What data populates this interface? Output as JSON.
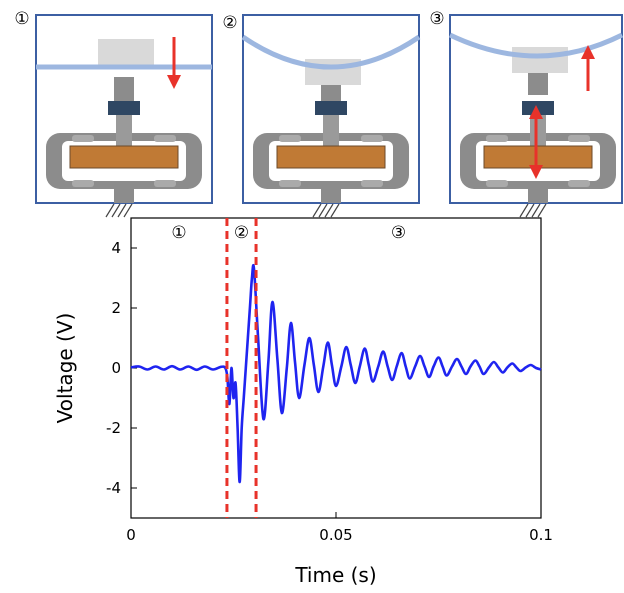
{
  "panels": [
    "①",
    "②",
    "③"
  ],
  "chart_data": {
    "type": "line",
    "xlabel": "Time (s)",
    "ylabel": "Voltage (V)",
    "xlim": [
      0,
      0.1
    ],
    "ylim": [
      -5,
      5
    ],
    "xticks": [
      0,
      0.05,
      0.1
    ],
    "yticks": [
      -4,
      -2,
      0,
      2,
      4
    ],
    "vlines": [
      0.0234,
      0.0305
    ],
    "vline_color": "#e8322a",
    "annotations": [
      "①",
      "②",
      "③"
    ],
    "series": [
      {
        "color": "#1f24f0",
        "x": [
          0,
          0.002,
          0.004,
          0.006,
          0.008,
          0.01,
          0.012,
          0.014,
          0.016,
          0.018,
          0.02,
          0.022,
          0.023,
          0.0235,
          0.024,
          0.0245,
          0.025,
          0.0255,
          0.026,
          0.0265,
          0.027,
          0.0275,
          0.028,
          0.029,
          0.0295,
          0.03,
          0.031,
          0.0323,
          0.0335,
          0.0345,
          0.0357,
          0.0368,
          0.038,
          0.039,
          0.04,
          0.041,
          0.0423,
          0.0435,
          0.0446,
          0.0457,
          0.0469,
          0.048,
          0.049,
          0.05,
          0.0513,
          0.0525,
          0.0536,
          0.0547,
          0.0558,
          0.057,
          0.058,
          0.059,
          0.0603,
          0.0615,
          0.0626,
          0.0637,
          0.0648,
          0.066,
          0.067,
          0.068,
          0.0693,
          0.0705,
          0.0716,
          0.0727,
          0.0738,
          0.075,
          0.076,
          0.077,
          0.0783,
          0.0795,
          0.0806,
          0.0817,
          0.0828,
          0.084,
          0.085,
          0.086,
          0.0873,
          0.0885,
          0.0896,
          0.0907,
          0.0918,
          0.093,
          0.094,
          0.095,
          0.0963,
          0.0975,
          0.0988,
          0.1
        ],
        "values": [
          0.02,
          0.05,
          -0.05,
          0.05,
          -0.05,
          0.06,
          -0.05,
          0.05,
          -0.06,
          0.05,
          -0.05,
          0.04,
          0,
          -0.3,
          -1.2,
          0,
          -1.0,
          -0.5,
          -2,
          -3.8,
          -2,
          -1,
          0,
          2,
          3.0,
          3.3,
          1.0,
          -1.7,
          0.2,
          2.2,
          0.3,
          -1.5,
          0,
          1.5,
          0.2,
          -1.0,
          0.1,
          1.0,
          0.1,
          -0.8,
          0.05,
          0.85,
          0.1,
          -0.6,
          0.05,
          0.7,
          0.1,
          -0.5,
          0.05,
          0.65,
          0.1,
          -0.45,
          0.05,
          0.55,
          0.05,
          -0.4,
          0.05,
          0.5,
          0.05,
          -0.35,
          0.05,
          0.4,
          0.05,
          -0.3,
          0.05,
          0.35,
          0.05,
          -0.25,
          0.05,
          0.3,
          0.05,
          -0.2,
          0.05,
          0.25,
          0.05,
          -0.2,
          0.02,
          0.2,
          0.02,
          -0.15,
          0.02,
          0.15,
          0.02,
          -0.1,
          0.02,
          0.1,
          0.0,
          -0.05
        ]
      }
    ]
  }
}
